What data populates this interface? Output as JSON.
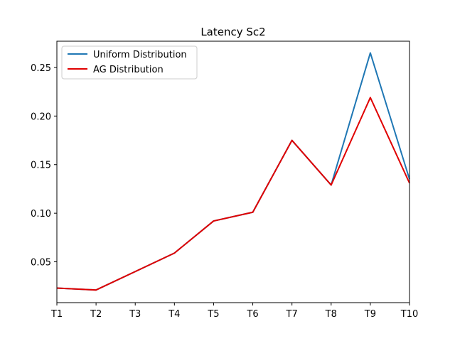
{
  "chart_data": {
    "type": "line",
    "title": "Latency Sc2",
    "xlabel": "",
    "ylabel": "",
    "categories": [
      "T1",
      "T2",
      "T3",
      "T4",
      "T5",
      "T6",
      "T7",
      "T8",
      "T9",
      "T10"
    ],
    "ylim": [
      0.008,
      0.277
    ],
    "yticks": [
      0.05,
      0.1,
      0.15,
      0.2,
      0.25
    ],
    "ytick_labels": [
      "0.05",
      "0.10",
      "0.15",
      "0.20",
      "0.25"
    ],
    "grid": false,
    "legend_position": "top-left",
    "series": [
      {
        "name": "Uniform Distribution",
        "color": "#1f77b4",
        "values": [
          0.023,
          0.021,
          0.04,
          0.059,
          0.092,
          0.101,
          0.175,
          0.129,
          0.265,
          0.135
        ]
      },
      {
        "name": "AG Distribution",
        "color": "#e00000",
        "values": [
          0.023,
          0.021,
          0.04,
          0.059,
          0.092,
          0.101,
          0.175,
          0.129,
          0.219,
          0.131
        ]
      }
    ]
  }
}
